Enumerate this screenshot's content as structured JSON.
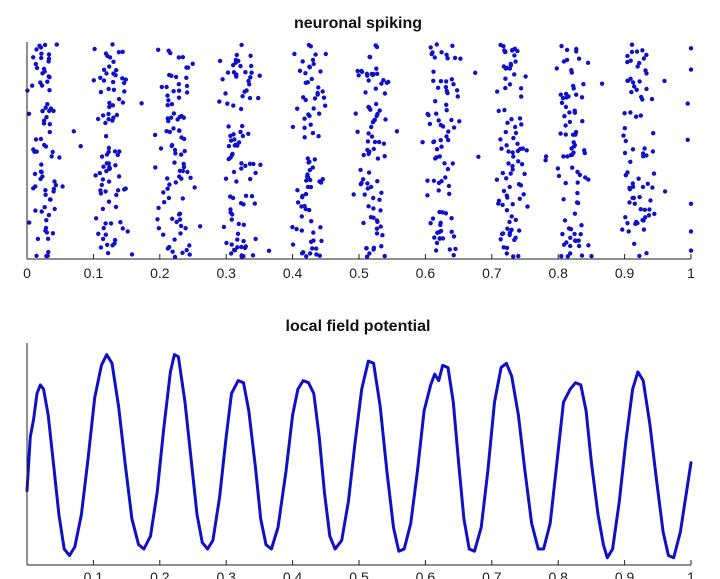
{
  "colors": {
    "series": "#1010c8",
    "axis": "#222222"
  },
  "chart_data": [
    {
      "id": "spiking",
      "type": "scatter",
      "title": "neuronal spiking",
      "xlim": [
        0,
        1
      ],
      "ylim": [
        0,
        1
      ],
      "xticks": [
        0,
        0.1,
        0.2,
        0.3,
        0.4,
        0.5,
        0.6,
        0.7,
        0.8,
        0.9,
        1
      ],
      "xtick_labels": [
        "0",
        "0.1",
        "0.2",
        "0.3",
        "0.4",
        "0.5",
        "0.6",
        "0.7",
        "0.8",
        "0.9",
        "1"
      ],
      "grid": false,
      "bursts": [
        {
          "center": 0.025,
          "width": 0.045,
          "count": 80
        },
        {
          "center": 0.125,
          "width": 0.045,
          "count": 85
        },
        {
          "center": 0.225,
          "width": 0.045,
          "count": 85
        },
        {
          "center": 0.32,
          "width": 0.045,
          "count": 85
        },
        {
          "center": 0.425,
          "width": 0.045,
          "count": 80
        },
        {
          "center": 0.52,
          "width": 0.045,
          "count": 80
        },
        {
          "center": 0.625,
          "width": 0.045,
          "count": 80
        },
        {
          "center": 0.725,
          "width": 0.045,
          "count": 85
        },
        {
          "center": 0.82,
          "width": 0.045,
          "count": 80
        },
        {
          "center": 0.92,
          "width": 0.045,
          "count": 75
        }
      ],
      "background_spikes": 40,
      "edge_spikes": [
        {
          "x": 1.0,
          "y": 0.03
        },
        {
          "x": 1.0,
          "y": 0.12
        },
        {
          "x": 1.0,
          "y": 0.25
        },
        {
          "x": 0.995,
          "y": 0.55
        },
        {
          "x": 0.995,
          "y": 0.72
        },
        {
          "x": 1.0,
          "y": 0.88
        },
        {
          "x": 1.0,
          "y": 0.98
        }
      ]
    },
    {
      "id": "lfp",
      "type": "line",
      "title": "local field potential",
      "xlim": [
        0,
        1
      ],
      "ylim": [
        0,
        1
      ],
      "xticks": [
        0.1,
        0.2,
        0.3,
        0.4,
        0.5,
        0.6,
        0.7,
        0.8,
        0.9,
        1
      ],
      "xtick_labels": [
        "0.1",
        "0.2",
        "0.3",
        "0.4",
        "0.5",
        "0.6",
        "0.7",
        "0.8",
        "0.9",
        "1"
      ],
      "grid": false,
      "points": [
        [
          0.0,
          0.33
        ],
        [
          0.005,
          0.58
        ],
        [
          0.01,
          0.66
        ],
        [
          0.015,
          0.78
        ],
        [
          0.02,
          0.82
        ],
        [
          0.025,
          0.8
        ],
        [
          0.032,
          0.68
        ],
        [
          0.04,
          0.45
        ],
        [
          0.048,
          0.22
        ],
        [
          0.056,
          0.06
        ],
        [
          0.064,
          0.03
        ],
        [
          0.072,
          0.07
        ],
        [
          0.082,
          0.22
        ],
        [
          0.092,
          0.48
        ],
        [
          0.102,
          0.76
        ],
        [
          0.112,
          0.91
        ],
        [
          0.12,
          0.96
        ],
        [
          0.128,
          0.92
        ],
        [
          0.138,
          0.72
        ],
        [
          0.148,
          0.45
        ],
        [
          0.158,
          0.2
        ],
        [
          0.168,
          0.08
        ],
        [
          0.176,
          0.06
        ],
        [
          0.186,
          0.12
        ],
        [
          0.196,
          0.32
        ],
        [
          0.206,
          0.62
        ],
        [
          0.216,
          0.88
        ],
        [
          0.222,
          0.96
        ],
        [
          0.228,
          0.95
        ],
        [
          0.238,
          0.74
        ],
        [
          0.248,
          0.45
        ],
        [
          0.256,
          0.22
        ],
        [
          0.264,
          0.09
        ],
        [
          0.272,
          0.06
        ],
        [
          0.28,
          0.1
        ],
        [
          0.29,
          0.3
        ],
        [
          0.3,
          0.58
        ],
        [
          0.308,
          0.78
        ],
        [
          0.318,
          0.84
        ],
        [
          0.326,
          0.83
        ],
        [
          0.334,
          0.7
        ],
        [
          0.344,
          0.44
        ],
        [
          0.352,
          0.2
        ],
        [
          0.36,
          0.08
        ],
        [
          0.368,
          0.06
        ],
        [
          0.378,
          0.16
        ],
        [
          0.39,
          0.42
        ],
        [
          0.4,
          0.68
        ],
        [
          0.408,
          0.8
        ],
        [
          0.416,
          0.84
        ],
        [
          0.424,
          0.83
        ],
        [
          0.432,
          0.78
        ],
        [
          0.44,
          0.58
        ],
        [
          0.448,
          0.32
        ],
        [
          0.456,
          0.12
        ],
        [
          0.464,
          0.06
        ],
        [
          0.474,
          0.1
        ],
        [
          0.484,
          0.28
        ],
        [
          0.494,
          0.55
        ],
        [
          0.504,
          0.8
        ],
        [
          0.514,
          0.93
        ],
        [
          0.522,
          0.92
        ],
        [
          0.532,
          0.72
        ],
        [
          0.542,
          0.42
        ],
        [
          0.552,
          0.16
        ],
        [
          0.56,
          0.05
        ],
        [
          0.568,
          0.06
        ],
        [
          0.578,
          0.18
        ],
        [
          0.588,
          0.42
        ],
        [
          0.598,
          0.7
        ],
        [
          0.608,
          0.82
        ],
        [
          0.614,
          0.87
        ],
        [
          0.62,
          0.84
        ],
        [
          0.626,
          0.91
        ],
        [
          0.634,
          0.9
        ],
        [
          0.642,
          0.74
        ],
        [
          0.65,
          0.46
        ],
        [
          0.658,
          0.2
        ],
        [
          0.666,
          0.06
        ],
        [
          0.674,
          0.05
        ],
        [
          0.684,
          0.16
        ],
        [
          0.694,
          0.42
        ],
        [
          0.704,
          0.74
        ],
        [
          0.714,
          0.9
        ],
        [
          0.722,
          0.92
        ],
        [
          0.73,
          0.86
        ],
        [
          0.74,
          0.68
        ],
        [
          0.75,
          0.42
        ],
        [
          0.76,
          0.18
        ],
        [
          0.77,
          0.06
        ],
        [
          0.778,
          0.06
        ],
        [
          0.788,
          0.18
        ],
        [
          0.798,
          0.46
        ],
        [
          0.808,
          0.74
        ],
        [
          0.818,
          0.8
        ],
        [
          0.826,
          0.83
        ],
        [
          0.834,
          0.82
        ],
        [
          0.842,
          0.7
        ],
        [
          0.85,
          0.46
        ],
        [
          0.86,
          0.22
        ],
        [
          0.868,
          0.08
        ],
        [
          0.874,
          0.02
        ],
        [
          0.882,
          0.06
        ],
        [
          0.892,
          0.28
        ],
        [
          0.902,
          0.56
        ],
        [
          0.912,
          0.8
        ],
        [
          0.92,
          0.88
        ],
        [
          0.928,
          0.84
        ],
        [
          0.938,
          0.64
        ],
        [
          0.948,
          0.38
        ],
        [
          0.958,
          0.14
        ],
        [
          0.966,
          0.03
        ],
        [
          0.974,
          0.02
        ],
        [
          0.984,
          0.14
        ],
        [
          0.994,
          0.34
        ],
        [
          1.0,
          0.46
        ]
      ]
    }
  ]
}
